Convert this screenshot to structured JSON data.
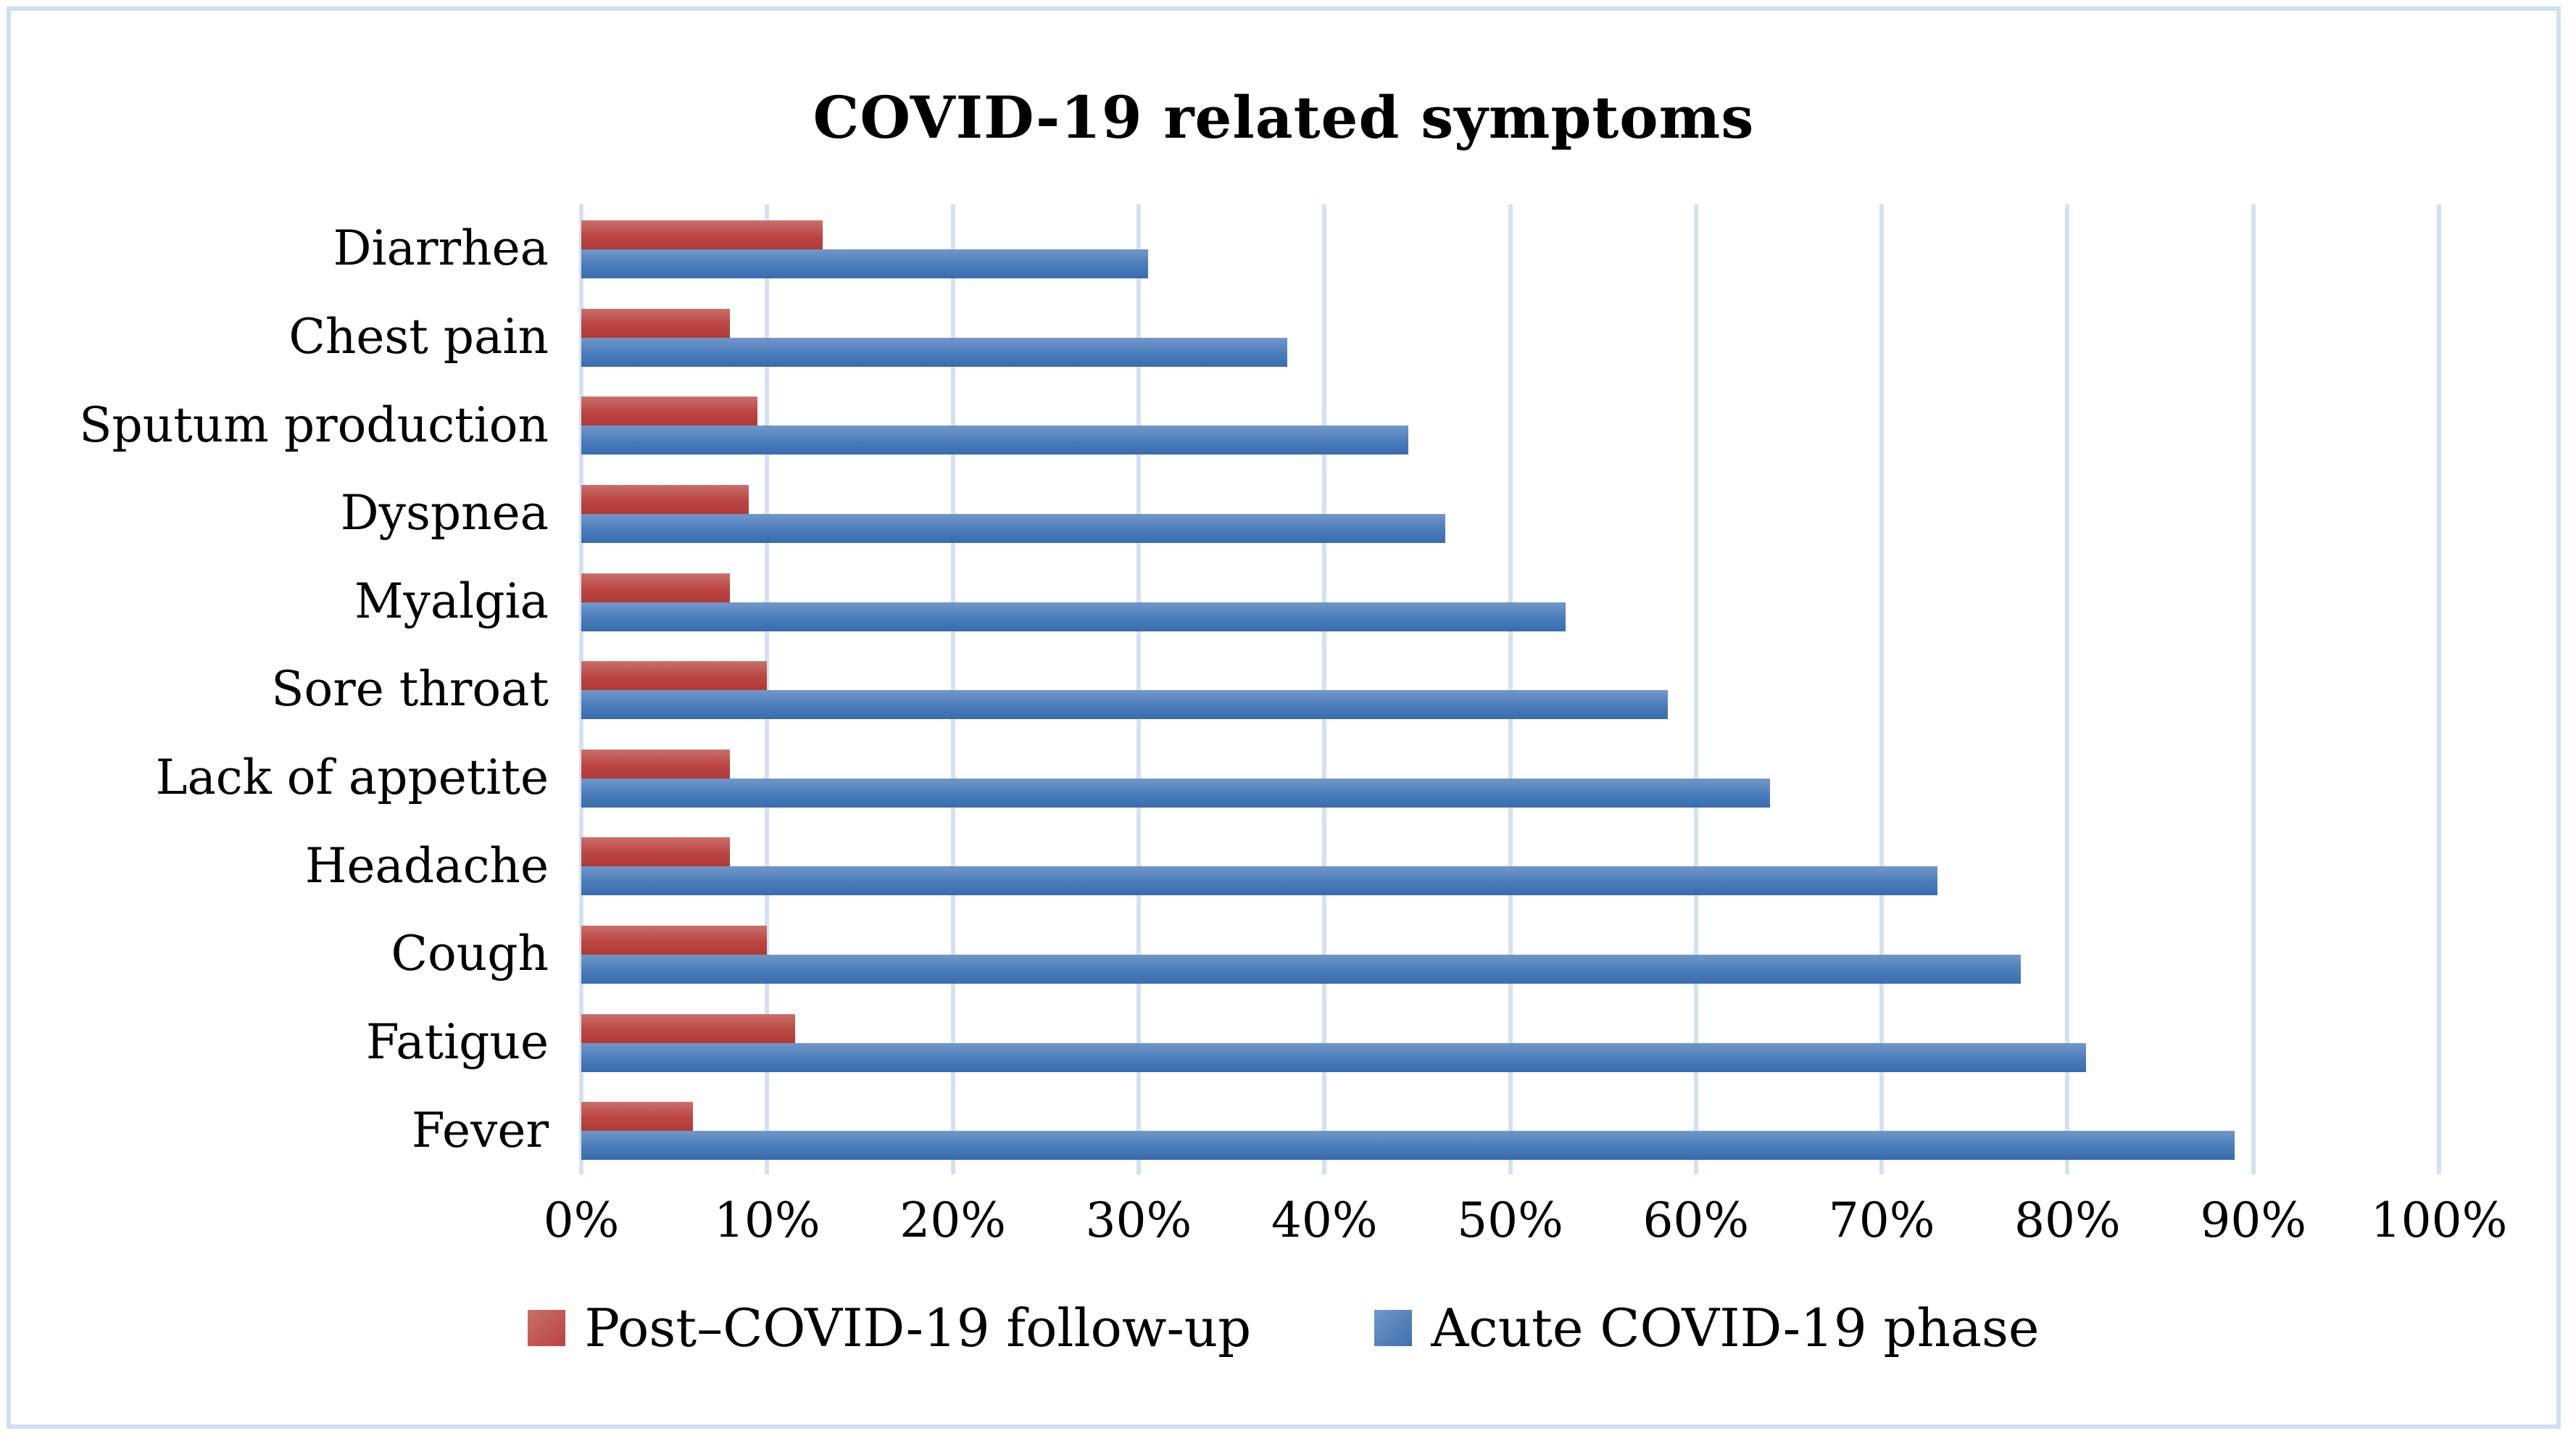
{
  "figure": {
    "title": "COVID-19 related symptoms"
  },
  "colors": {
    "post_followup_red": "#c0504d",
    "acute_phase_blue": "#4f81bd",
    "gridline": "#d5e1f1",
    "figure_border": "#cfe0f0",
    "text": "#000000"
  },
  "chart_data": {
    "type": "bar",
    "orientation": "horizontal",
    "title": "COVID-19 related symptoms",
    "categories": [
      "Diarrhea",
      "Chest pain",
      "Sputum production",
      "Dyspnea",
      "Myalgia",
      "Sore throat",
      "Lack of appetite",
      "Headache",
      "Cough",
      "Fatigue",
      "Fever"
    ],
    "series": [
      {
        "name": "Post–COVID-19 follow-up",
        "color": "#c0504d",
        "values": [
          13,
          8,
          9.5,
          9,
          8,
          10,
          8,
          8,
          10,
          11.5,
          6
        ]
      },
      {
        "name": "Acute COVID-19 phase",
        "color": "#4f81bd",
        "values": [
          30.5,
          38,
          44.5,
          46.5,
          53,
          58.5,
          64,
          73,
          77.5,
          81,
          89
        ]
      }
    ],
    "x_axis": {
      "min": 0,
      "max": 100,
      "tick_step": 10,
      "tick_labels": [
        "0%",
        "10%",
        "20%",
        "30%",
        "40%",
        "50%",
        "60%",
        "70%",
        "80%",
        "90%",
        "100%"
      ],
      "unit": "percent"
    },
    "grid": true,
    "legend_position": "bottom"
  }
}
